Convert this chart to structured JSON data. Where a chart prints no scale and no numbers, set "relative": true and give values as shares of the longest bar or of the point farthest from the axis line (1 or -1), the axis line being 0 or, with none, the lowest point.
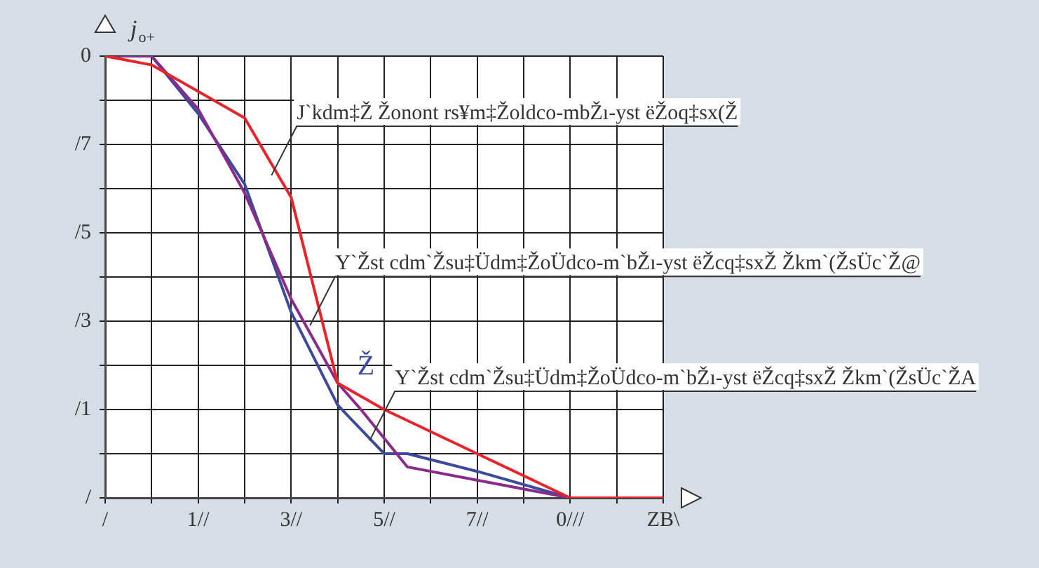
{
  "chart_data": {
    "type": "line",
    "ylabel": "j$_{o+}$",
    "relative": true,
    "categories": [
      "/",
      null,
      null,
      null,
      "1//",
      null,
      null,
      null,
      "3//",
      null,
      null,
      null,
      "5//",
      null,
      null,
      null,
      "7//",
      null,
      null,
      null,
      "0///",
      null,
      null,
      null,
      "ZB\\"
    ],
    "grid": true,
    "legend": false,
    "marker": "none",
    "line_style": "solid",
    "series": [
      {
        "color": "#e8232a",
        "values": [
          1,
          null,
          0.98,
          null,
          null,
          null,
          0.86,
          null,
          0.68,
          null,
          0.26,
          null,
          0.2,
          null,
          0.15,
          null,
          0.1,
          null,
          null,
          null,
          0,
          null,
          null,
          null,
          0
        ]
      },
      {
        "color": "#8a2a8a",
        "values": [
          1,
          null,
          1,
          null,
          0.88,
          null,
          0.69,
          null,
          0.45,
          null,
          0.26,
          0.2,
          null,
          0.07,
          null,
          null,
          null,
          null,
          null,
          null,
          0,
          null,
          null,
          null,
          0
        ]
      },
      {
        "name": "Ž",
        "color": "#3c4a9c",
        "values": [
          1,
          null,
          1,
          null,
          0.87,
          null,
          0.71,
          null,
          0.42,
          null,
          0.21,
          null,
          0.1,
          0.1,
          null,
          null,
          0.06,
          null,
          null,
          null,
          0,
          null,
          null,
          null,
          0
        ]
      }
    ],
    "annotations": [
      "J`kdm‡Ž Žonont rs¥m‡Žoldco-mbŽı-yst ëŽoq‡sx(Ž",
      "Y`Žst cdm`Žsu‡Üdm‡ŽoÜdco-m`bŽı-yst ëŽcq‡sxŽ Žkm`(ŽsÜc`Ž@",
      "Y`Žst cdm`Žsu‡Üdm‡ŽoÜdco-m`bŽı-yst ëŽcq‡sxŽ Žkm`(ŽsÜc`ŽA",
      "0",
      "/7",
      "/5",
      "/3",
      "/1",
      "/"
    ]
  }
}
